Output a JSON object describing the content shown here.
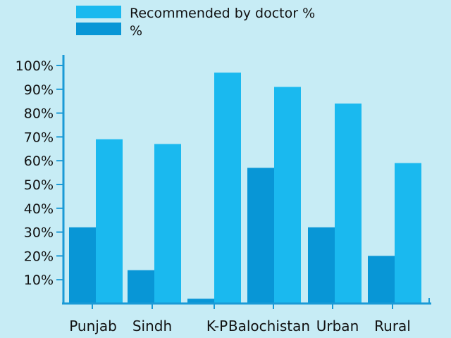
{
  "chart_data": {
    "type": "bar",
    "categories": [
      "Punjab",
      "Sindh",
      "K-P",
      "Balochistan",
      "Urban",
      "Rural"
    ],
    "series": [
      {
        "name": "%",
        "color": "#0896d6",
        "values": [
          32,
          14,
          2,
          57,
          32,
          20
        ]
      },
      {
        "name": "Recommended by doctor %",
        "color": "#1ab9ef",
        "values": [
          69,
          67,
          97,
          91,
          84,
          59
        ]
      }
    ],
    "legend_order": [
      "Recommended by doctor %",
      "%"
    ],
    "legend_position": "top-center",
    "y_ticks": [
      "10%",
      "20%",
      "30%",
      "40%",
      "50%",
      "60%",
      "70%",
      "80%",
      "90%",
      "100%"
    ],
    "ylim": [
      0,
      100
    ],
    "grid": false,
    "axis_color": "#1a9ad6",
    "background": "#c7ecf5"
  }
}
